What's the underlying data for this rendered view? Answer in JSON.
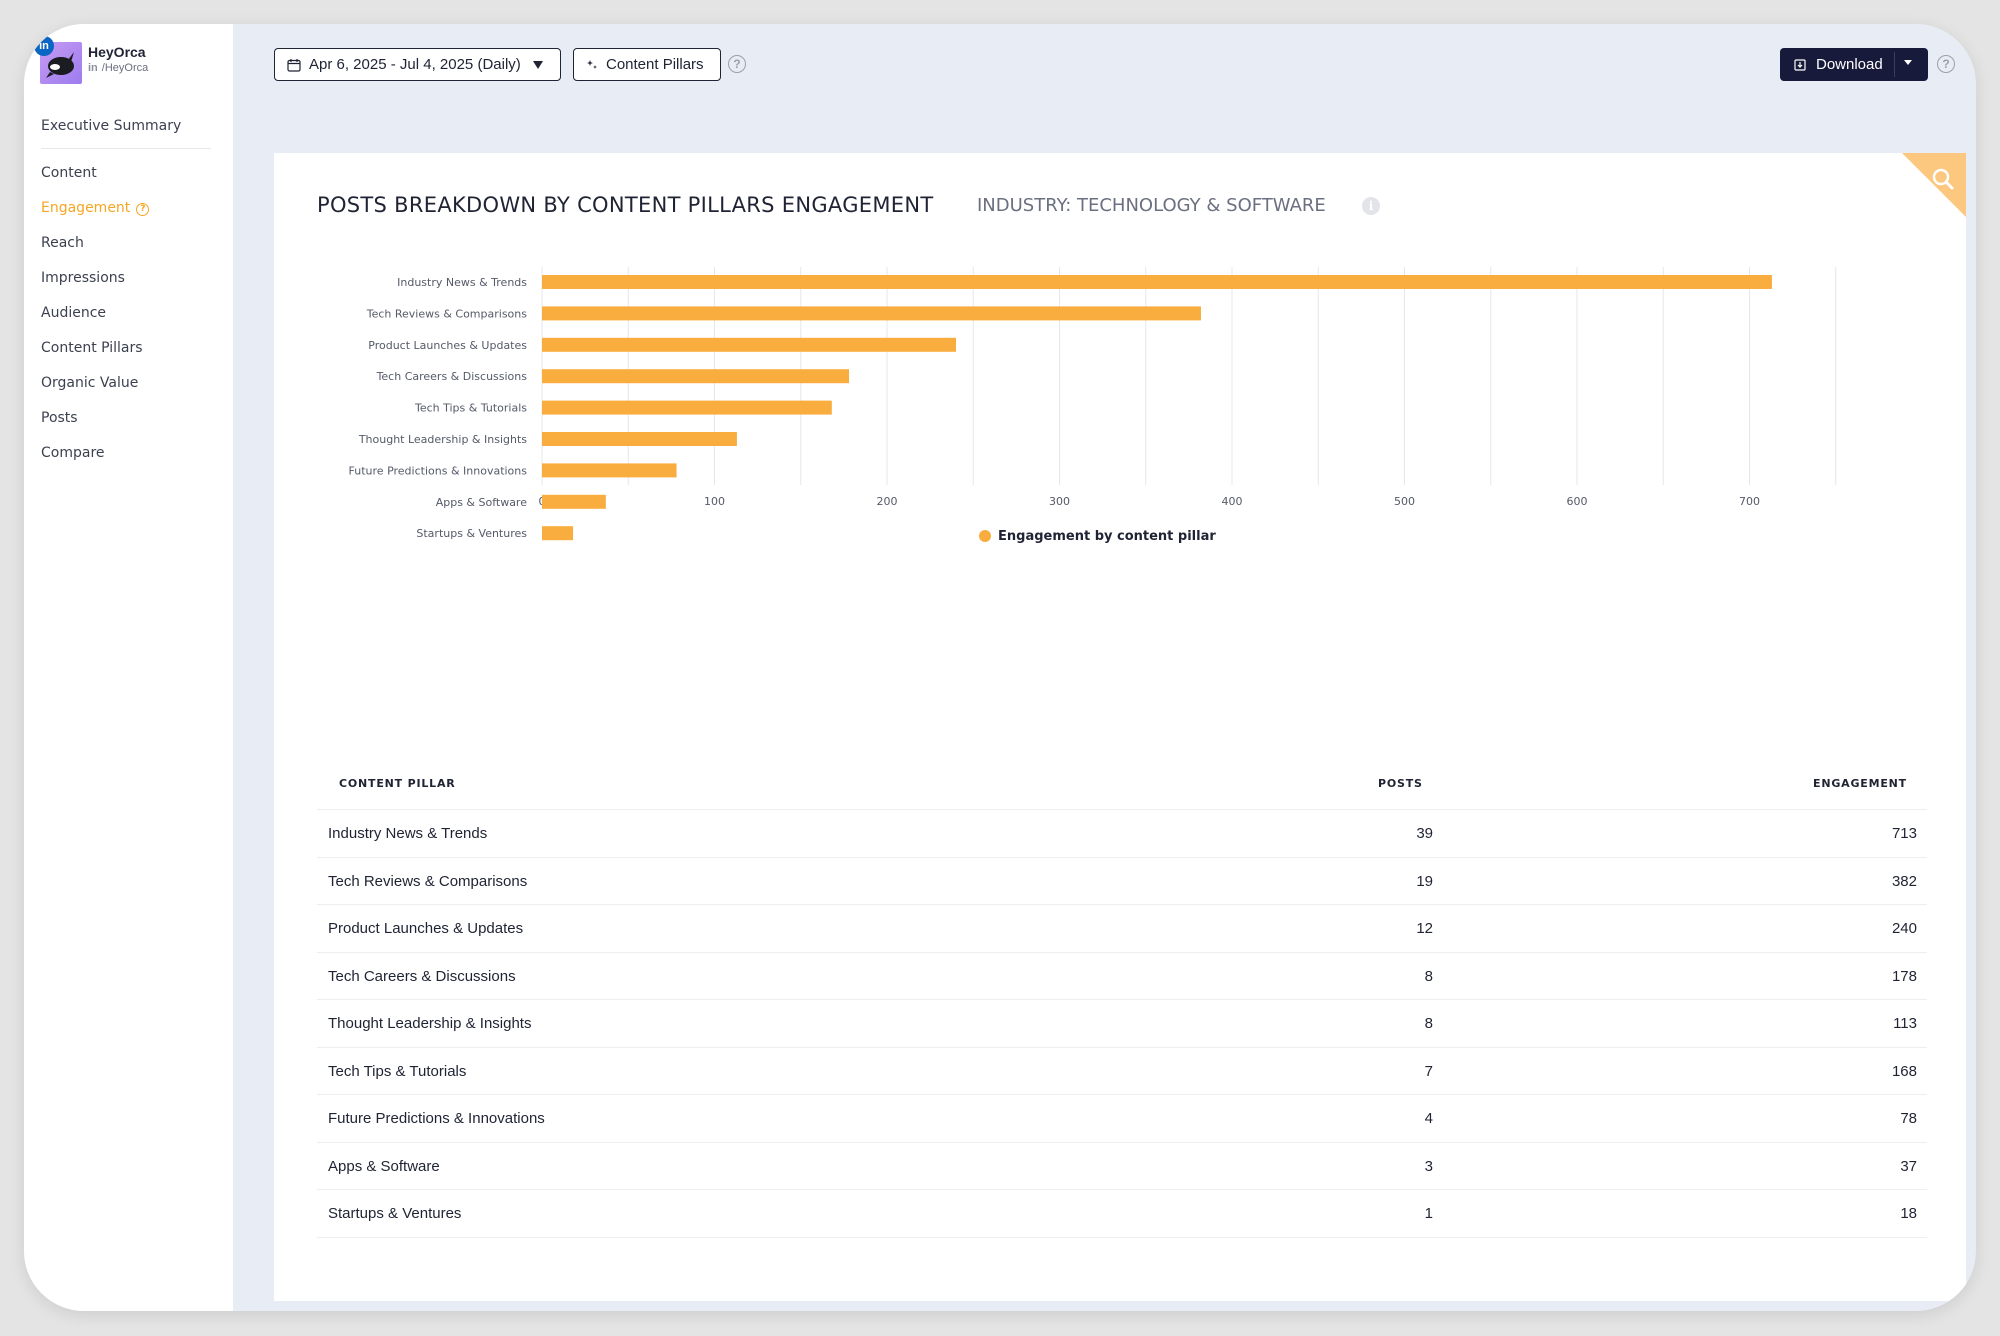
{
  "profile": {
    "name": "HeyOrca",
    "network": "in",
    "handle": "/HeyOrca"
  },
  "nav": {
    "summary": "Executive Summary",
    "items": [
      {
        "label": "Content"
      },
      {
        "label": "Engagement",
        "active": true
      },
      {
        "label": "Reach"
      },
      {
        "label": "Impressions"
      },
      {
        "label": "Audience"
      },
      {
        "label": "Content Pillars"
      },
      {
        "label": "Organic Value"
      },
      {
        "label": "Posts"
      },
      {
        "label": "Compare"
      }
    ]
  },
  "toolbar": {
    "date_range": "Apr 6, 2025 - Jul 4, 2025 (Daily)",
    "filter_label": "Content Pillars",
    "download_label": "Download"
  },
  "card": {
    "title": "POSTS BREAKDOWN BY CONTENT PILLARS ENGAGEMENT",
    "subtitle": "INDUSTRY: TECHNOLOGY & SOFTWARE"
  },
  "chart_data": {
    "type": "bar",
    "orientation": "horizontal",
    "categories": [
      "Industry News & Trends",
      "Tech Reviews & Comparisons",
      "Product Launches & Updates",
      "Tech Careers & Discussions",
      "Tech Tips & Tutorials",
      "Thought Leadership & Insights",
      "Future Predictions & Innovations",
      "Apps & Software",
      "Startups & Ventures"
    ],
    "series": [
      {
        "name": "Engagement by content pillar",
        "values": [
          713,
          382,
          240,
          178,
          168,
          113,
          78,
          37,
          18
        ],
        "color": "#f9ad3e"
      }
    ],
    "xticks": [
      0,
      100,
      200,
      300,
      400,
      500,
      600,
      700
    ],
    "xlim": [
      0,
      750
    ],
    "grid": true,
    "legend": "bottom"
  },
  "table": {
    "headers": {
      "pillar": "CONTENT PILLAR",
      "posts": "POSTS",
      "engagement": "ENGAGEMENT"
    },
    "rows": [
      {
        "pillar": "Industry News & Trends",
        "posts": "39",
        "engagement": "713"
      },
      {
        "pillar": "Tech Reviews & Comparisons",
        "posts": "19",
        "engagement": "382"
      },
      {
        "pillar": "Product Launches & Updates",
        "posts": "12",
        "engagement": "240"
      },
      {
        "pillar": "Tech Careers & Discussions",
        "posts": "8",
        "engagement": "178"
      },
      {
        "pillar": "Thought Leadership & Insights",
        "posts": "8",
        "engagement": "113"
      },
      {
        "pillar": "Tech Tips & Tutorials",
        "posts": "7",
        "engagement": "168"
      },
      {
        "pillar": "Future Predictions & Innovations",
        "posts": "4",
        "engagement": "78"
      },
      {
        "pillar": "Apps & Software",
        "posts": "3",
        "engagement": "37"
      },
      {
        "pillar": "Startups & Ventures",
        "posts": "1",
        "engagement": "18"
      }
    ]
  },
  "colors": {
    "accent": "#f5a623",
    "bar": "#f9ad3e",
    "download_bg": "#171a3a",
    "linkedin": "#0a66c2"
  },
  "icons": [
    "calendar-icon",
    "sparkle-icon",
    "help-icon",
    "download-icon",
    "chevron-down-icon",
    "search-icon",
    "info-icon",
    "linkedin-icon",
    "orca-avatar"
  ]
}
